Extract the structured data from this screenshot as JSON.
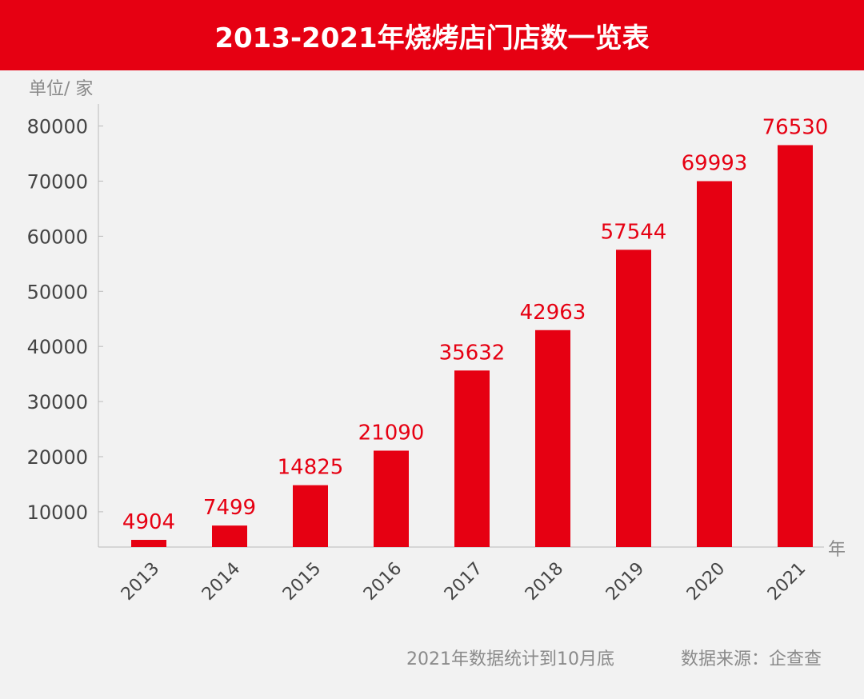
{
  "title": "2013-2021年烧烤店门店数一览表",
  "chart_data": {
    "type": "bar",
    "title": "2013-2021年烧烤店门店数一览表",
    "ylabel": "单位/ 家",
    "xlabel": "年",
    "categories": [
      "2013",
      "2014",
      "2015",
      "2016",
      "2017",
      "2018",
      "2019",
      "2020",
      "2021"
    ],
    "values": [
      4904,
      7499,
      14825,
      21090,
      35632,
      42963,
      57544,
      69993,
      76530
    ],
    "yticks": [
      10000,
      20000,
      30000,
      40000,
      50000,
      60000,
      70000,
      80000
    ],
    "ylim": [
      3600,
      84000
    ],
    "grid": false,
    "bar_color": "#e60012",
    "label_color": "#e60012"
  },
  "footer": {
    "note": "2021年数据统计到10月底",
    "source": "数据来源：企查查"
  }
}
